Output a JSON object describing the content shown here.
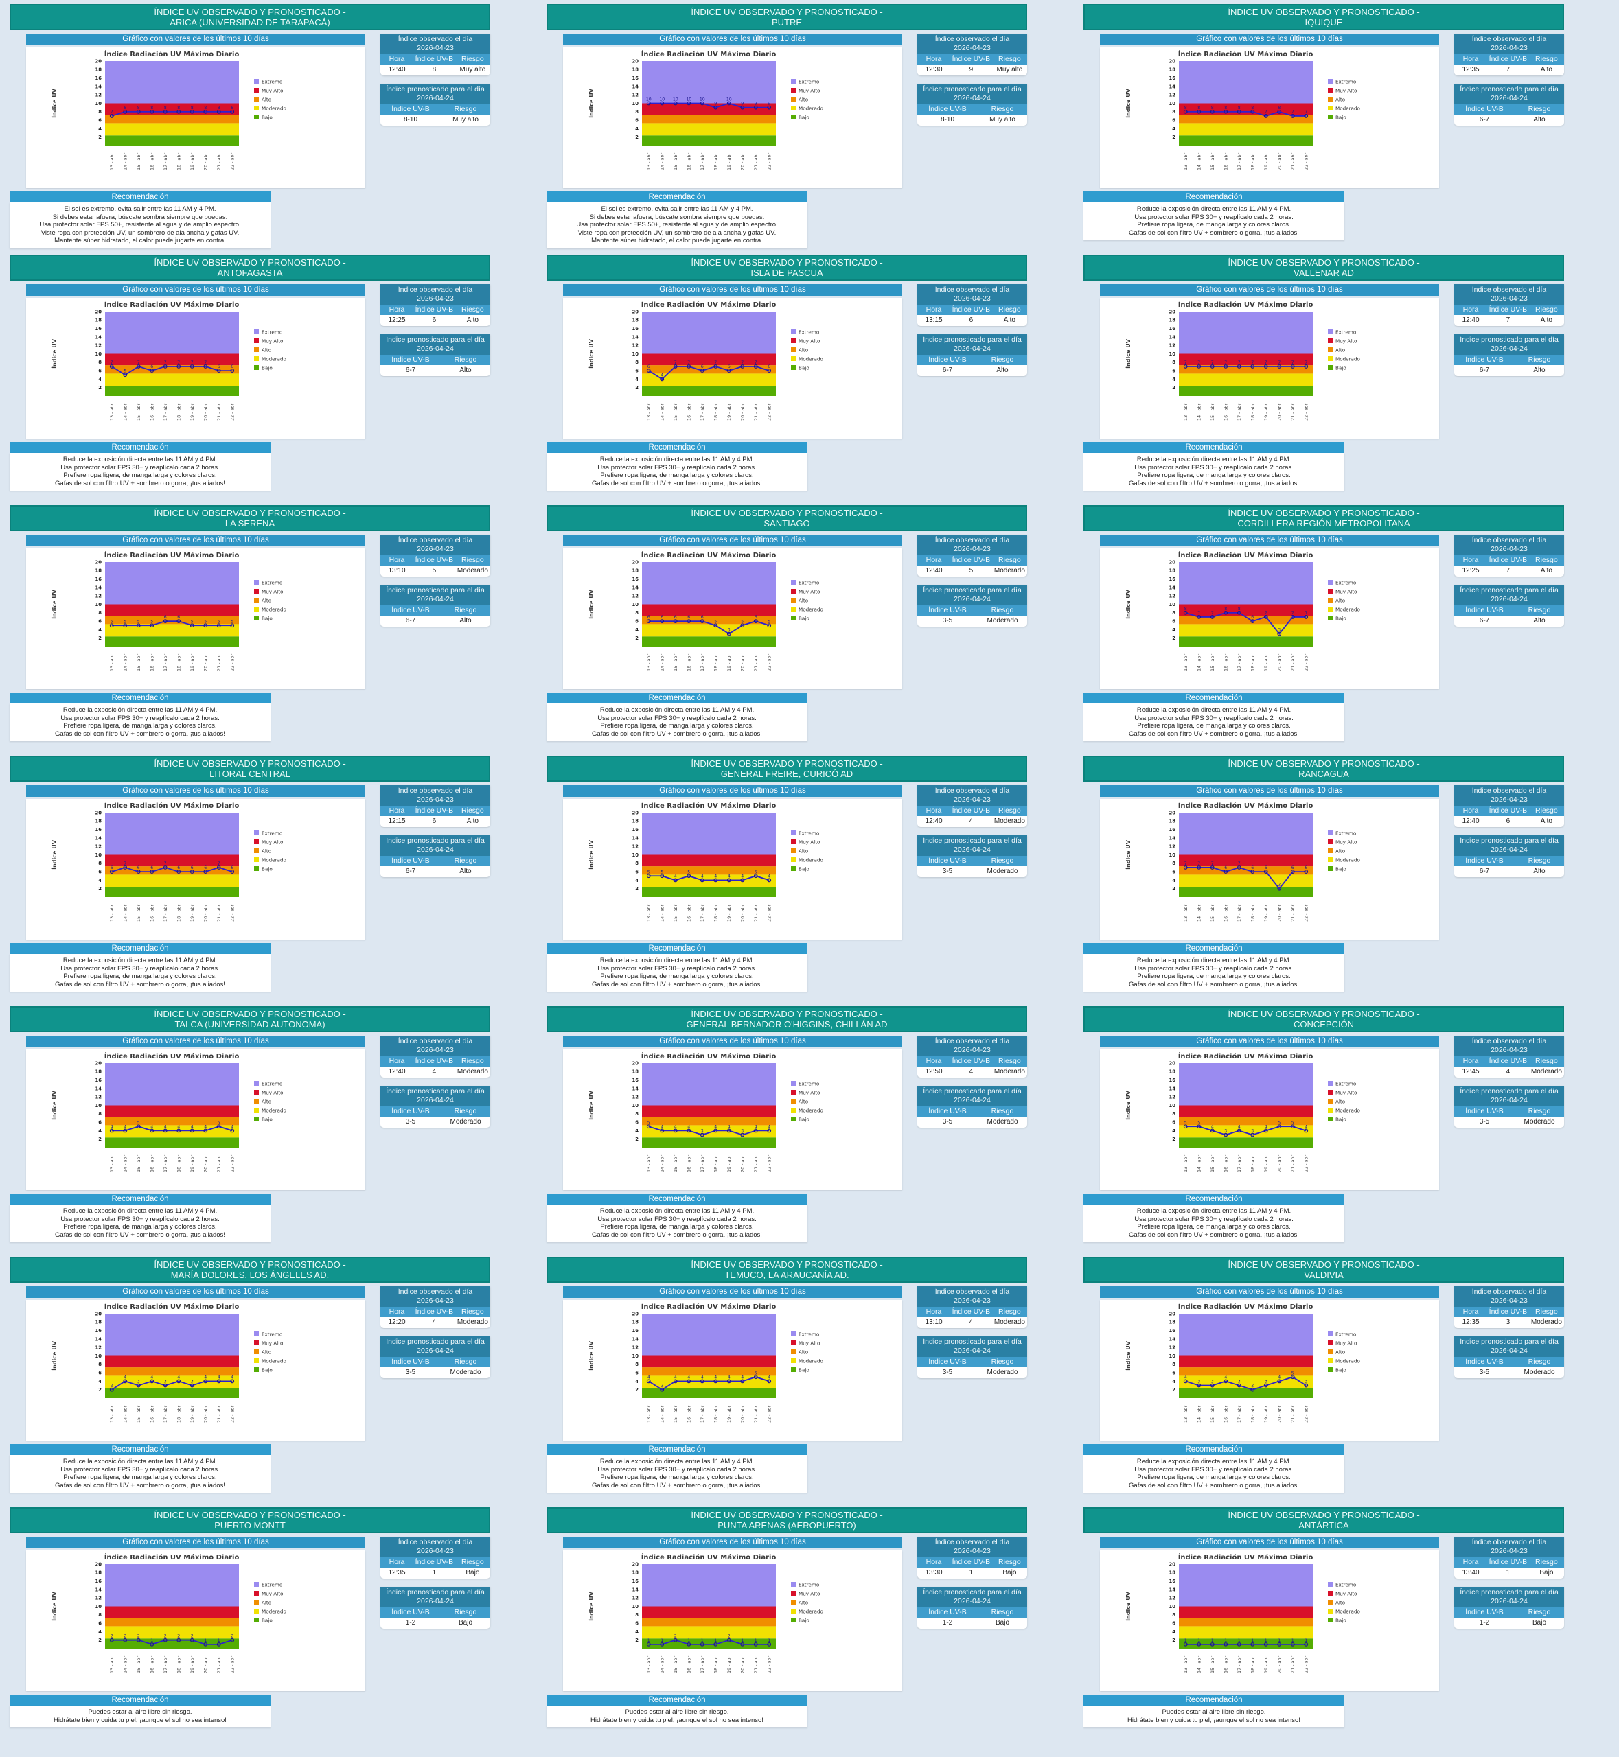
{
  "page": {
    "background": "#dde7f1",
    "accent_teal": "#10948d",
    "accent_blue": "#2d95c5"
  },
  "shared": {
    "title_prefix": "ÍNDICE UV OBSERVADO Y PRONOSTICADO -",
    "grafico_label": "Gráfico con valores de los últimos 10 días",
    "observado_title": "Índice observado el día",
    "observado_date": "2026-04-23",
    "pronosticado_title": "Índice pronosticado para el día",
    "pronosticado_date": "2026-04-24",
    "col_hora": "Hora",
    "col_uvb": "Índice UV-B",
    "col_riesgo": "Riesgo",
    "recomendacion_label": "Recomendación",
    "recommendations": {
      "extremo": [
        "El sol es extremo, evita salir entre las 11 AM y 4 PM.",
        "Si debes estar afuera, búscate sombra siempre que puedas.",
        "Usa protector solar FPS 50+, resistente al agua y de amplio espectro.",
        "Viste ropa con protección UV, un sombrero de ala ancha y gafas UV.",
        "Mantente súper hidratado, el calor puede jugarte en contra."
      ],
      "alto": [
        "Reduce la exposición directa entre las 11 AM y 4 PM.",
        "Usa protector solar FPS 30+ y reaplícalo cada 2 horas.",
        "Prefiere ropa ligera, de manga larga y colores claros.",
        "Gafas de sol con filtro UV + sombrero o gorra, ¡tus aliados!"
      ],
      "bajo": [
        "Puedes estar al aire libre sin riesgo.",
        "Hidrátate bien y cuida tu piel, ¡aunque el sol no sea intenso!"
      ]
    }
  },
  "chart_data": {
    "type": "line",
    "title": "Índice Radiación UV Máximo Diario",
    "ylabel": "Índice UV",
    "ylim": [
      0,
      20
    ],
    "y_ticks": [
      2,
      4,
      6,
      8,
      10,
      12,
      14,
      16,
      18,
      20
    ],
    "x": [
      "13 - abr",
      "14 - abr",
      "15 - abr",
      "16 - abr",
      "17 - abr",
      "18 - abr",
      "19 - abr",
      "20 - abr",
      "21 - abr",
      "22 - abr"
    ],
    "line_color": "#2d20cf",
    "marker_color": "#1d1690",
    "bands": [
      {
        "label": "Bajo",
        "from": 0,
        "to": 2.4,
        "color": "#55ad03"
      },
      {
        "label": "Moderado",
        "from": 2.4,
        "to": 5.3,
        "color": "#f1e102"
      },
      {
        "label": "Alto",
        "from": 5.3,
        "to": 7.3,
        "color": "#f08e00"
      },
      {
        "label": "Muy Alto",
        "from": 7.3,
        "to": 10.0,
        "color": "#d8102a"
      },
      {
        "label": "Extremo",
        "from": 10.0,
        "to": 20,
        "color": "#9a8bf0"
      }
    ],
    "series": [
      {
        "name": "ARICA (UNIVERSIDAD DE TARAPACÁ)",
        "values": [
          7,
          8,
          8,
          8,
          8,
          8,
          8,
          8,
          8,
          8
        ]
      },
      {
        "name": "PUTRE",
        "values": [
          10,
          10,
          10,
          10,
          10,
          9,
          10,
          9,
          9,
          9
        ]
      },
      {
        "name": "IQUIQUE",
        "values": [
          8,
          8,
          8,
          8,
          8,
          8,
          7,
          8,
          7,
          7
        ]
      },
      {
        "name": "ANTOFAGASTA",
        "values": [
          7,
          5,
          7,
          6,
          7,
          7,
          7,
          7,
          6,
          6
        ]
      },
      {
        "name": "ISLA DE PASCUA",
        "values": [
          6,
          4,
          7,
          7,
          6,
          7,
          6,
          7,
          7,
          6
        ]
      },
      {
        "name": "VALLENAR AD",
        "values": [
          7,
          7,
          7,
          7,
          7,
          7,
          7,
          7,
          7,
          7
        ]
      },
      {
        "name": "LA SERENA",
        "values": [
          5,
          5,
          5,
          5,
          6,
          6,
          5,
          5,
          5,
          5
        ]
      },
      {
        "name": "SANTIAGO",
        "values": [
          6,
          6,
          6,
          6,
          6,
          5,
          3,
          5,
          6,
          5
        ]
      },
      {
        "name": "CORDILLERA REGIÓN METROPOLITANA",
        "values": [
          8,
          7,
          7,
          8,
          8,
          6,
          7,
          3,
          7,
          7
        ]
      },
      {
        "name": "LITORAL CENTRAL",
        "values": [
          6,
          7,
          6,
          6,
          7,
          6,
          6,
          6,
          7,
          6
        ]
      },
      {
        "name": "GENERAL FREIRE, CURICÓ AD",
        "values": [
          5,
          5,
          4,
          5,
          4,
          4,
          4,
          4,
          5,
          4
        ]
      },
      {
        "name": "RANCAGUA",
        "values": [
          7,
          7,
          7,
          6,
          7,
          6,
          6,
          2,
          6,
          6
        ]
      },
      {
        "name": "TALCA (UNIVERSIDAD AUTONOMA)",
        "values": [
          4,
          4,
          5,
          4,
          4,
          4,
          4,
          4,
          5,
          4
        ]
      },
      {
        "name": "GENERAL BERNADOR O'HIGGINS, CHILLÁN AD",
        "values": [
          5,
          4,
          4,
          4,
          3,
          4,
          4,
          3,
          4,
          4
        ]
      },
      {
        "name": "CONCEPCIÓN",
        "values": [
          5,
          5,
          4,
          3,
          4,
          3,
          4,
          5,
          5,
          4
        ]
      },
      {
        "name": "MARÍA DOLORES, LOS ÁNGELES AD.",
        "values": [
          2,
          4,
          3,
          4,
          3,
          4,
          3,
          4,
          4,
          4
        ]
      },
      {
        "name": "TEMUCO, LA ARAUCANÍA AD.",
        "values": [
          4,
          2,
          4,
          4,
          4,
          4,
          4,
          4,
          5,
          4
        ]
      },
      {
        "name": "VALDIVIA",
        "values": [
          4,
          3,
          3,
          4,
          3,
          2,
          3,
          4,
          5,
          3
        ]
      },
      {
        "name": "PUERTO MONTT",
        "values": [
          2,
          2,
          2,
          1,
          2,
          2,
          2,
          1,
          1,
          2
        ]
      },
      {
        "name": "PUNTA ARENAS (AEROPUERTO)",
        "values": [
          1,
          1,
          2,
          1,
          1,
          1,
          2,
          1,
          1,
          1
        ]
      },
      {
        "name": "ANTÁRTICA",
        "values": [
          1,
          1,
          1,
          1,
          1,
          1,
          1,
          1,
          1,
          1
        ]
      }
    ]
  },
  "cards": [
    {
      "city": "ARICA (UNIVERSIDAD DE TARAPACÁ)",
      "hora": "12:40",
      "uv": "8",
      "riesgo": "Muy alto",
      "forecast_uv": "8-10",
      "forecast_riesgo": "Muy alto",
      "rec": "extremo"
    },
    {
      "city": "PUTRE",
      "hora": "12:30",
      "uv": "9",
      "riesgo": "Muy alto",
      "forecast_uv": "8-10",
      "forecast_riesgo": "Muy alto",
      "rec": "extremo"
    },
    {
      "city": "IQUIQUE",
      "hora": "12:35",
      "uv": "7",
      "riesgo": "Alto",
      "forecast_uv": "6-7",
      "forecast_riesgo": "Alto",
      "rec": "alto"
    },
    {
      "city": "ANTOFAGASTA",
      "hora": "12:25",
      "uv": "6",
      "riesgo": "Alto",
      "forecast_uv": "6-7",
      "forecast_riesgo": "Alto",
      "rec": "alto"
    },
    {
      "city": "ISLA DE PASCUA",
      "hora": "13:15",
      "uv": "6",
      "riesgo": "Alto",
      "forecast_uv": "6-7",
      "forecast_riesgo": "Alto",
      "rec": "alto"
    },
    {
      "city": "VALLENAR AD",
      "hora": "12:40",
      "uv": "7",
      "riesgo": "Alto",
      "forecast_uv": "6-7",
      "forecast_riesgo": "Alto",
      "rec": "alto"
    },
    {
      "city": "LA SERENA",
      "hora": "13:10",
      "uv": "5",
      "riesgo": "Moderado",
      "forecast_uv": "6-7",
      "forecast_riesgo": "Alto",
      "rec": "alto"
    },
    {
      "city": "SANTIAGO",
      "hora": "12:40",
      "uv": "5",
      "riesgo": "Moderado",
      "forecast_uv": "3-5",
      "forecast_riesgo": "Moderado",
      "rec": "alto"
    },
    {
      "city": "CORDILLERA REGIÓN METROPOLITANA",
      "hora": "12:25",
      "uv": "7",
      "riesgo": "Alto",
      "forecast_uv": "6-7",
      "forecast_riesgo": "Alto",
      "rec": "alto"
    },
    {
      "city": "LITORAL CENTRAL",
      "hora": "12:15",
      "uv": "6",
      "riesgo": "Alto",
      "forecast_uv": "6-7",
      "forecast_riesgo": "Alto",
      "rec": "alto"
    },
    {
      "city": "GENERAL FREIRE, CURICÓ AD",
      "hora": "12:40",
      "uv": "4",
      "riesgo": "Moderado",
      "forecast_uv": "3-5",
      "forecast_riesgo": "Moderado",
      "rec": "alto"
    },
    {
      "city": "RANCAGUA",
      "hora": "12:40",
      "uv": "6",
      "riesgo": "Alto",
      "forecast_uv": "6-7",
      "forecast_riesgo": "Alto",
      "rec": "alto"
    },
    {
      "city": "TALCA (UNIVERSIDAD AUTONOMA)",
      "hora": "12:40",
      "uv": "4",
      "riesgo": "Moderado",
      "forecast_uv": "3-5",
      "forecast_riesgo": "Moderado",
      "rec": "alto"
    },
    {
      "city": "GENERAL BERNADOR O'HIGGINS, CHILLÁN AD",
      "hora": "12:50",
      "uv": "4",
      "riesgo": "Moderado",
      "forecast_uv": "3-5",
      "forecast_riesgo": "Moderado",
      "rec": "alto"
    },
    {
      "city": "CONCEPCIÓN",
      "hora": "12:45",
      "uv": "4",
      "riesgo": "Moderado",
      "forecast_uv": "3-5",
      "forecast_riesgo": "Moderado",
      "rec": "alto"
    },
    {
      "city": "MARÍA DOLORES, LOS ÁNGELES AD.",
      "hora": "12:20",
      "uv": "4",
      "riesgo": "Moderado",
      "forecast_uv": "3-5",
      "forecast_riesgo": "Moderado",
      "rec": "alto"
    },
    {
      "city": "TEMUCO, LA ARAUCANÍA AD.",
      "hora": "13:10",
      "uv": "4",
      "riesgo": "Moderado",
      "forecast_uv": "3-5",
      "forecast_riesgo": "Moderado",
      "rec": "alto"
    },
    {
      "city": "VALDIVIA",
      "hora": "12:35",
      "uv": "3",
      "riesgo": "Moderado",
      "forecast_uv": "3-5",
      "forecast_riesgo": "Moderado",
      "rec": "alto"
    },
    {
      "city": "PUERTO MONTT",
      "hora": "12:35",
      "uv": "1",
      "riesgo": "Bajo",
      "forecast_uv": "1-2",
      "forecast_riesgo": "Bajo",
      "rec": "bajo"
    },
    {
      "city": "PUNTA ARENAS (AEROPUERTO)",
      "hora": "13:30",
      "uv": "1",
      "riesgo": "Bajo",
      "forecast_uv": "1-2",
      "forecast_riesgo": "Bajo",
      "rec": "bajo"
    },
    {
      "city": "ANTÁRTICA",
      "hora": "13:40",
      "uv": "1",
      "riesgo": "Bajo",
      "forecast_uv": "1-2",
      "forecast_riesgo": "Bajo",
      "rec": "bajo"
    }
  ]
}
